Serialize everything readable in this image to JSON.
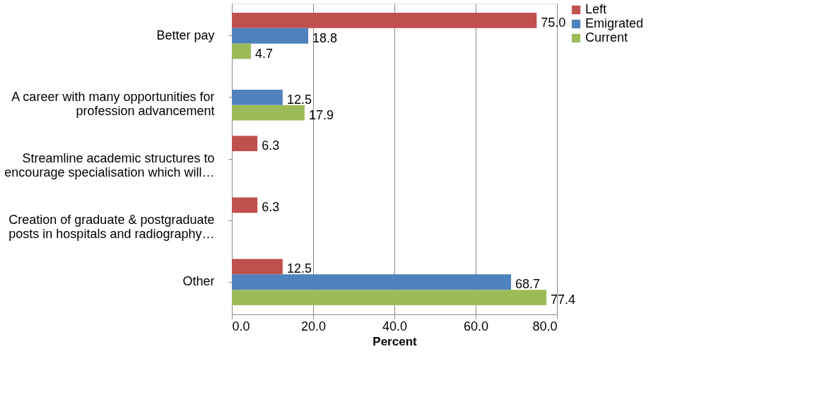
{
  "chart_data": {
    "type": "bar",
    "orientation": "horizontal",
    "categories": [
      "Better pay",
      "A career with many opportunities for profession advancement",
      "Streamline academic structures to encourage specialisation which will…",
      "Creation of graduate & postgraduate posts in hospitals and radiography…",
      "Other"
    ],
    "series": [
      {
        "name": "Left",
        "color": "#c0504d",
        "values": [
          75.0,
          null,
          6.3,
          6.3,
          12.5
        ],
        "value_labels": [
          "75.0",
          null,
          "6.3",
          "6.3",
          "12.5"
        ]
      },
      {
        "name": "Emigrated",
        "color": "#4f81bd",
        "values": [
          18.8,
          12.5,
          null,
          null,
          68.7
        ],
        "value_labels": [
          "18.8",
          "12.5",
          null,
          null,
          "68.7"
        ]
      },
      {
        "name": "Current",
        "color": "#9bbb59",
        "values": [
          4.7,
          17.9,
          null,
          null,
          77.4
        ],
        "value_labels": [
          "4.7",
          "17.9",
          null,
          null,
          "77.4"
        ]
      }
    ],
    "xlabel": "Percent",
    "xlim": [
      0,
      80
    ],
    "xticks": [
      {
        "value": 0,
        "label": "0.0"
      },
      {
        "value": 20,
        "label": "20.0"
      },
      {
        "value": 40,
        "label": "40.0"
      },
      {
        "value": 60,
        "label": "60.0"
      },
      {
        "value": 80,
        "label": "80.0"
      }
    ],
    "grid": "x",
    "legend": "right"
  }
}
